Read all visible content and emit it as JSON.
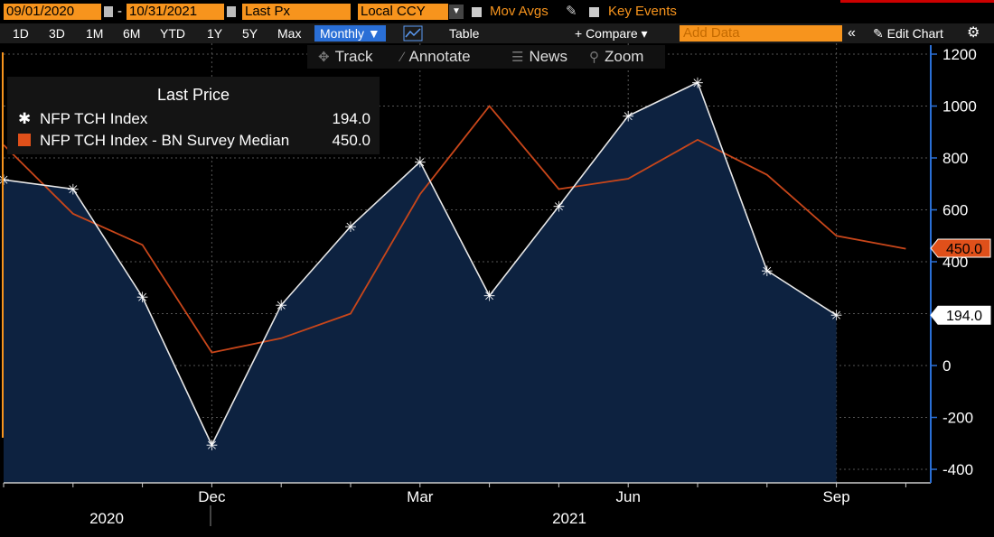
{
  "toolbar": {
    "start_date": "09/01/2020",
    "date_sep": "-",
    "end_date": "10/31/2021",
    "field": "Last Px",
    "currency": "Local CCY",
    "mov_avgs": "Mov Avgs",
    "key_events": "Key Events"
  },
  "ranges": {
    "items": [
      "1D",
      "3D",
      "1M",
      "6M",
      "YTD",
      "1Y",
      "5Y",
      "Max"
    ],
    "period": "Monthly ▼",
    "table": "Table",
    "compare": "+ Compare ▾",
    "add_data_placeholder": "Add Data",
    "collapse": "«",
    "edit_chart": "✎ Edit Chart",
    "settings": "⚙"
  },
  "tools": {
    "track": "Track",
    "annotate": "Annotate",
    "news": "News",
    "zoom": "Zoom"
  },
  "legend": {
    "title": "Last Price",
    "items": [
      {
        "name": "NFP TCH Index",
        "value": "194.0",
        "color": "#ffffff"
      },
      {
        "name": "NFP TCH Index - BN Survey Median",
        "value": "450.0",
        "color": "#e0501a"
      }
    ]
  },
  "colors": {
    "accent": "#f7941d",
    "axis": "#2a6fd6",
    "area_fill": "#0d2240",
    "actual_line": "#e8e8e8",
    "median_line": "#c8461a"
  },
  "chart_data": {
    "type": "line",
    "x": [
      "2020-09",
      "2020-10",
      "2020-11",
      "2020-12",
      "2021-01",
      "2021-02",
      "2021-03",
      "2021-04",
      "2021-05",
      "2021-06",
      "2021-07",
      "2021-08",
      "2021-09",
      "2021-10"
    ],
    "x_tick_labels": [
      "Dec",
      "Mar",
      "Jun",
      "Sep"
    ],
    "year_labels": [
      "2020",
      "2021"
    ],
    "ylim": [
      -420,
      1240
    ],
    "yticks": [
      1200,
      1000,
      800,
      600,
      400,
      200,
      0,
      -200,
      -400
    ],
    "grid": true,
    "legend_position": "top-left",
    "series": [
      {
        "name": "NFP TCH Index",
        "values": [
          716,
          680,
          264,
          -306,
          233,
          536,
          785,
          269,
          614,
          962,
          1091,
          366,
          194,
          null
        ],
        "last_value_label": "194.0"
      },
      {
        "name": "NFP TCH Index - BN Survey Median",
        "values": [
          850,
          585,
          465,
          50,
          105,
          200,
          660,
          1000,
          680,
          720,
          870,
          735,
          500,
          450
        ],
        "last_value_label": "450.0"
      }
    ]
  }
}
